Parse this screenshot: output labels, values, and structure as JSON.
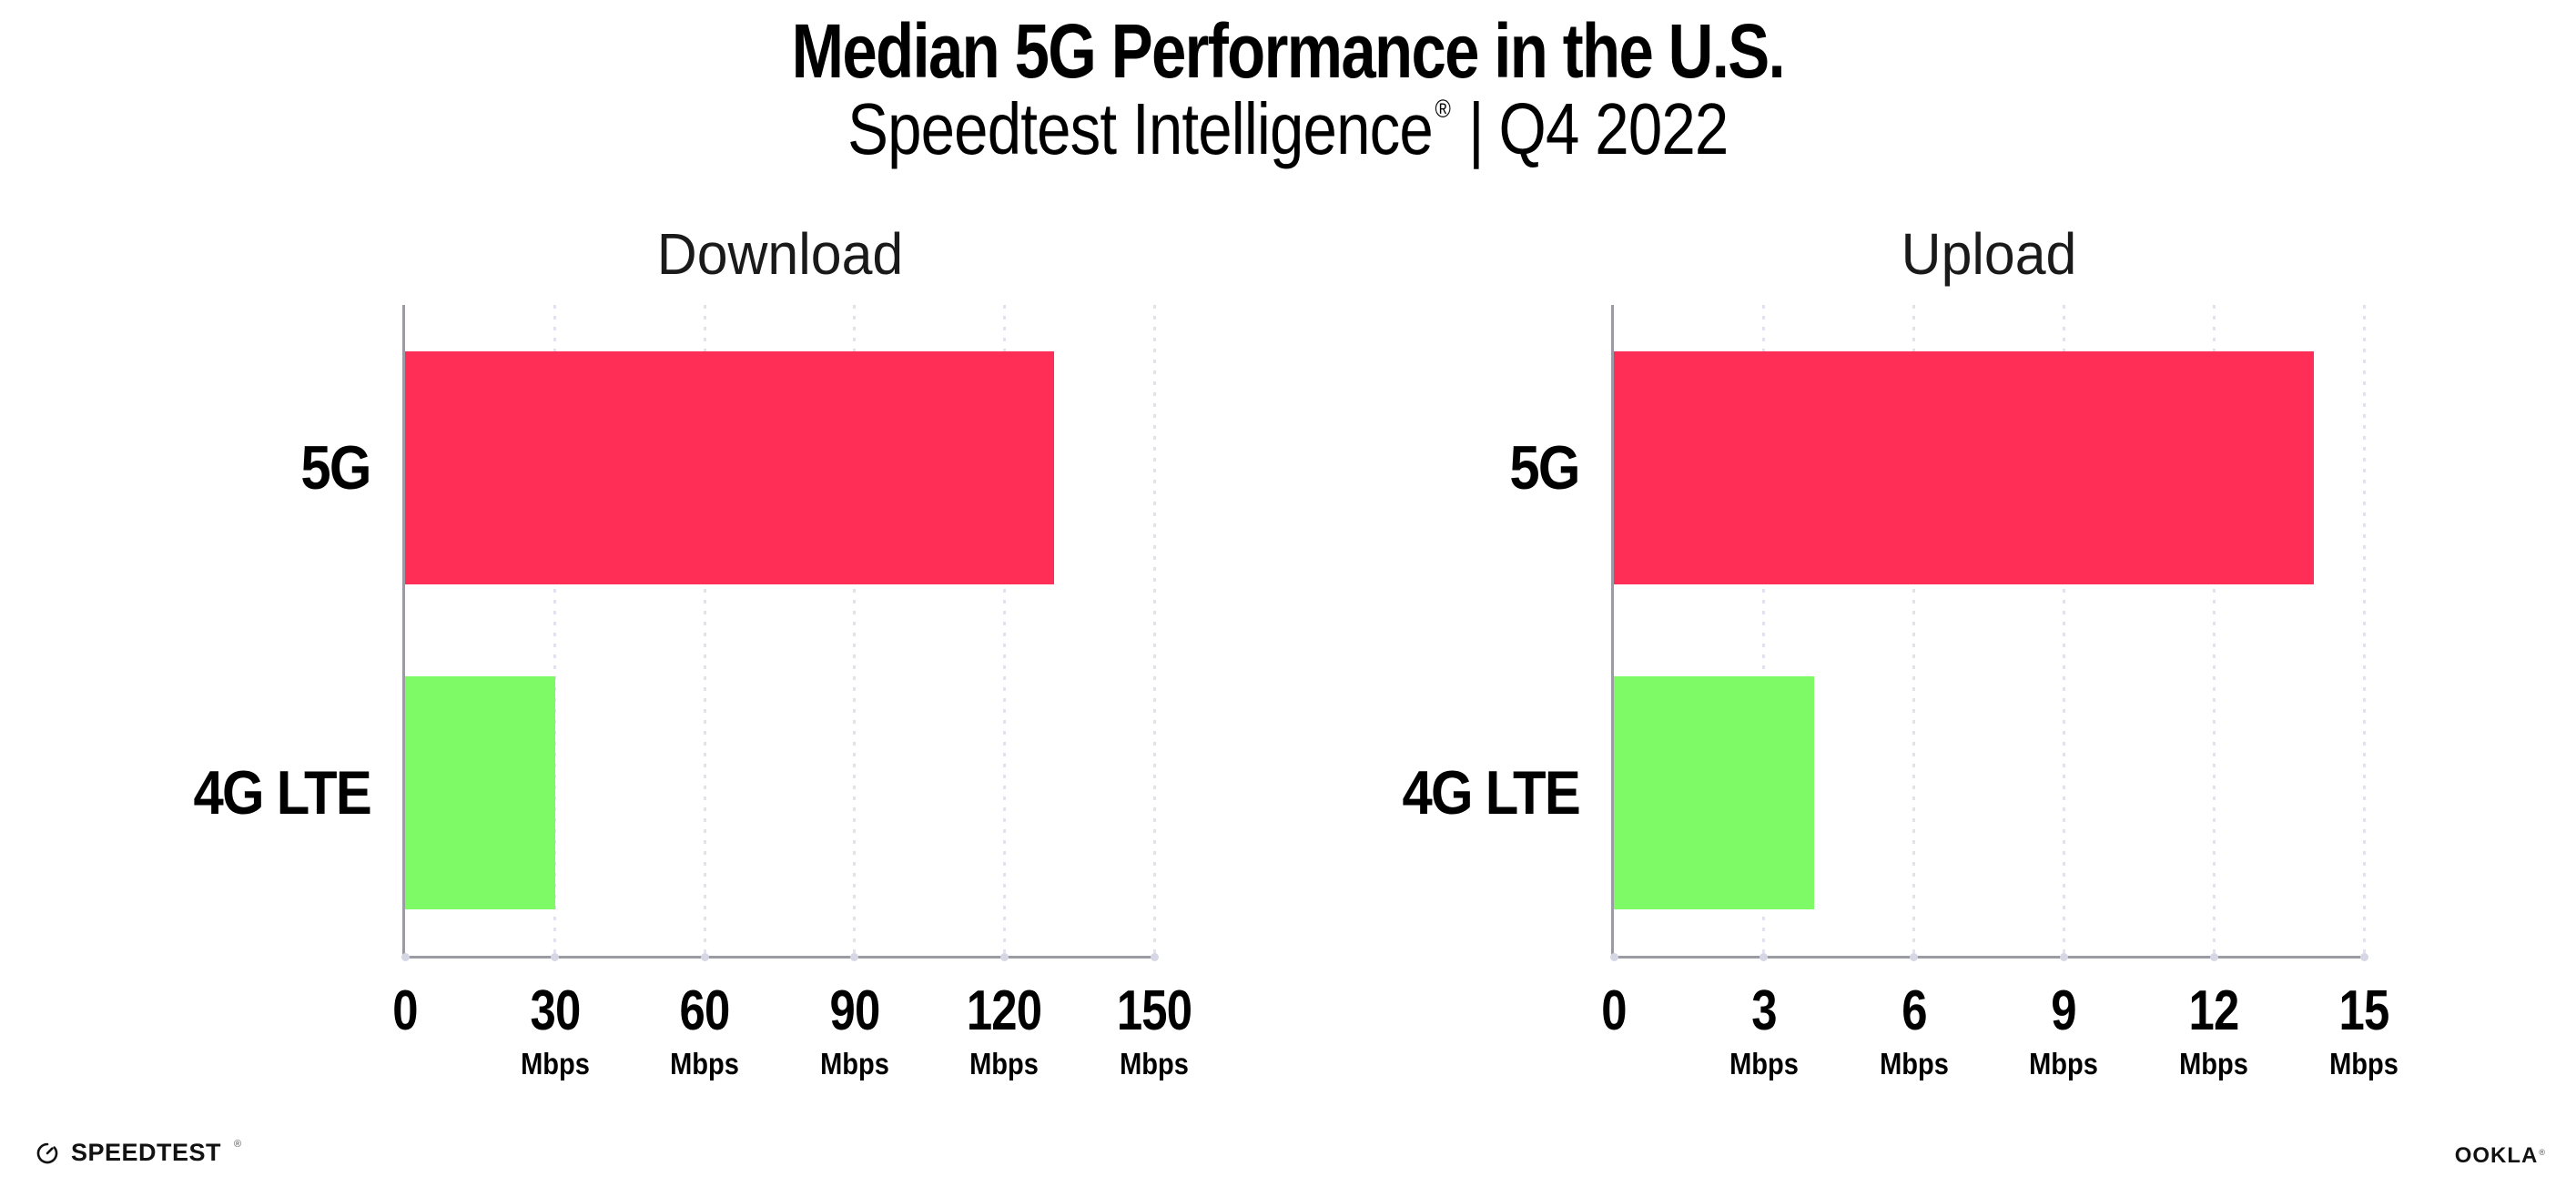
{
  "page": {
    "title": "Median 5G Performance in the U.S.",
    "subtitle_brand": "Speedtest Intelligence",
    "subtitle_reg": "®",
    "subtitle_sep": "|",
    "subtitle_period": "Q4 2022"
  },
  "colors": {
    "bar_5g": "#ff2e56",
    "bar_4g_lte": "#7dfa66",
    "axis": "#9b9ba3",
    "gridline": "#e2e2ee",
    "tick_dot": "#d6d6e4",
    "text": "#000000"
  },
  "chart_data": [
    {
      "type": "bar",
      "orientation": "horizontal",
      "title": "Download",
      "categories": [
        "5G",
        "4G LTE"
      ],
      "values": [
        130,
        30
      ],
      "bar_colors": [
        "#ff2e56",
        "#7dfa66"
      ],
      "unit": "Mbps",
      "xlim": [
        0,
        150
      ],
      "ticks": [
        0,
        30,
        60,
        90,
        120,
        150
      ],
      "tick_unit_label": "Mbps",
      "grid": "dotted-vertical",
      "legend": "none"
    },
    {
      "type": "bar",
      "orientation": "horizontal",
      "title": "Upload",
      "categories": [
        "5G",
        "4G LTE"
      ],
      "values": [
        14,
        4
      ],
      "bar_colors": [
        "#ff2e56",
        "#7dfa66"
      ],
      "unit": "Mbps",
      "xlim": [
        0,
        15
      ],
      "ticks": [
        0,
        3,
        6,
        9,
        12,
        15
      ],
      "tick_unit_label": "Mbps",
      "grid": "dotted-vertical",
      "legend": "none"
    }
  ],
  "footer": {
    "speedtest_logo": "SPEEDTEST",
    "speedtest_reg": "®",
    "ookla_logo": "OOKLA",
    "ookla_reg": "®"
  }
}
